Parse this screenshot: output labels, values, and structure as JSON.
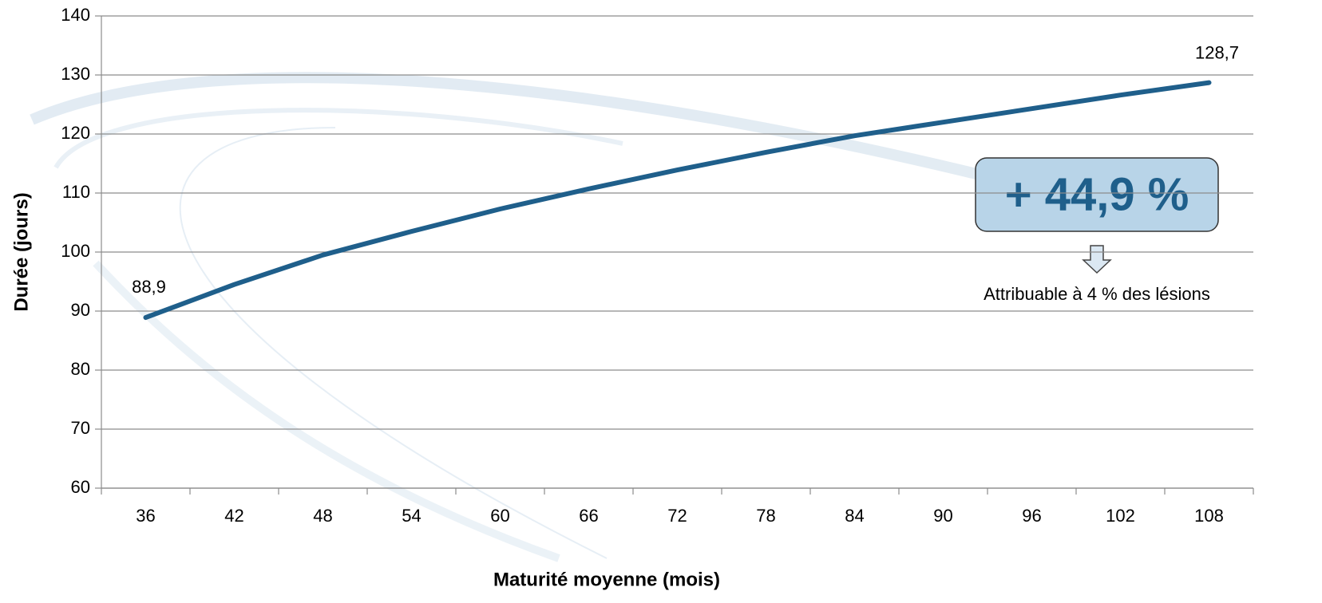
{
  "chart_data": {
    "type": "line",
    "x_label": "Maturité moyenne (mois)",
    "y_label": "Durée (jours)",
    "categories": [
      "36",
      "42",
      "48",
      "54",
      "60",
      "66",
      "72",
      "78",
      "84",
      "90",
      "96",
      "102",
      "108"
    ],
    "values": [
      88.9,
      94.5,
      99.5,
      103.5,
      107.3,
      110.7,
      113.9,
      116.9,
      119.7,
      122,
      124.3,
      126.6,
      128.7
    ],
    "value_labels": [
      "88,9",
      null,
      null,
      null,
      null,
      null,
      null,
      null,
      null,
      null,
      null,
      null,
      "128,7"
    ],
    "color": "#1f5f8b",
    "ylim": [
      60,
      140
    ],
    "yticks": [
      60,
      70,
      80,
      90,
      100,
      110,
      120,
      130,
      140
    ],
    "grid": true,
    "annotations": [
      {
        "text": "+ 44,9 %"
      },
      {
        "text": "Attribuable à 4 % des lésions"
      }
    ]
  }
}
